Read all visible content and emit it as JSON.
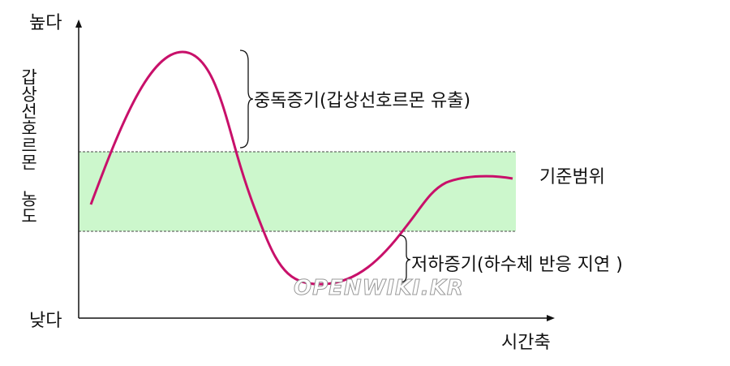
{
  "axis": {
    "high": "높다",
    "low": "낮다",
    "y_label": "갑상선호르몬 농도",
    "x_label": "시간축"
  },
  "annotations": {
    "hyper": "중독증기(갑상선호르몬 유출)",
    "reference": "기준범위",
    "hypo": "저하증기(하수체 반응 지연 )"
  },
  "watermark": "OPENWIKI.KR"
}
